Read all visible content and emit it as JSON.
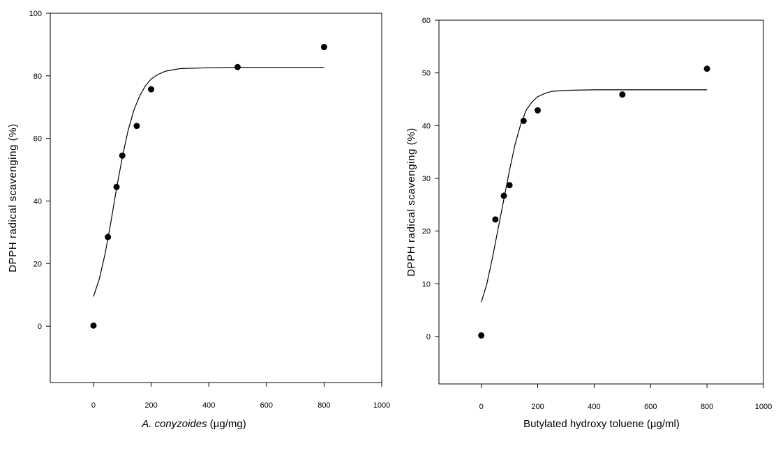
{
  "chart_data": [
    {
      "type": "scatter",
      "title": "",
      "xlabel_italic": "A. conyzoides",
      "xlabel_rest": " (µg/mg)",
      "ylabel": "DPPH radical scavenging (%)",
      "xlim": [
        -150,
        1000
      ],
      "ylim": [
        -18,
        100
      ],
      "xticks": [
        0,
        200,
        400,
        600,
        800,
        1000
      ],
      "yticks": [
        0,
        20,
        40,
        60,
        80,
        100
      ],
      "grid": false,
      "points": {
        "x": [
          0,
          50,
          80,
          100,
          150,
          200,
          500,
          800
        ],
        "y": [
          0.2,
          28.5,
          44.5,
          54.5,
          64,
          75.7,
          82.8,
          89.2
        ]
      },
      "fit_curve": {
        "x": [
          0,
          20,
          40,
          60,
          80,
          100,
          120,
          140,
          160,
          180,
          200,
          225,
          250,
          300,
          400,
          500,
          600,
          700,
          800
        ],
        "y": [
          9.5,
          15,
          23,
          33,
          44,
          54,
          62.5,
          69,
          73.5,
          76.8,
          79,
          80.5,
          81.5,
          82.3,
          82.6,
          82.7,
          82.7,
          82.7,
          82.7
        ]
      }
    },
    {
      "type": "scatter",
      "title": "",
      "xlabel_italic": "",
      "xlabel_rest": "Butylated hydroxy toluene (µg/ml)",
      "ylabel": "DPPH radical scavenging (%)",
      "xlim": [
        -150,
        1000
      ],
      "ylim": [
        -9,
        60
      ],
      "xticks": [
        0,
        200,
        400,
        600,
        800,
        1000
      ],
      "yticks": [
        0,
        10,
        20,
        30,
        40,
        50,
        60
      ],
      "grid": false,
      "points": {
        "x": [
          0,
          50,
          80,
          100,
          150,
          200,
          500,
          800
        ],
        "y": [
          0.2,
          22.2,
          26.7,
          28.7,
          40.9,
          42.9,
          45.9,
          50.8
        ]
      },
      "fit_curve": {
        "x": [
          0,
          20,
          40,
          60,
          80,
          100,
          120,
          140,
          160,
          180,
          200,
          225,
          250,
          300,
          400,
          500,
          600,
          700,
          800
        ],
        "y": [
          6.5,
          10,
          15,
          20.5,
          26,
          31.5,
          36.5,
          40.3,
          43,
          44.5,
          45.5,
          46.1,
          46.5,
          46.7,
          46.8,
          46.8,
          46.8,
          46.8,
          46.8
        ]
      }
    }
  ]
}
